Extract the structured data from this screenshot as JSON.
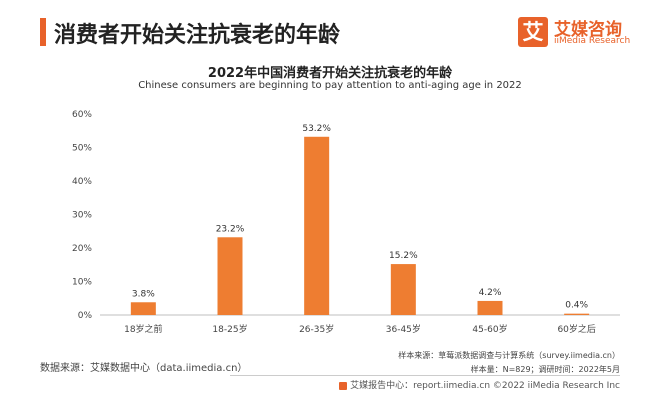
{
  "header": {
    "title": "消费者开始关注抗衰老的年龄",
    "logo_mark": "艾",
    "logo_cn": "艾媒咨询",
    "logo_en": "iiMedia Research"
  },
  "chart_data": {
    "type": "bar",
    "title": "2022年中国消费者开始关注抗衰老的年龄",
    "subtitle": "Chinese consumers are beginning to pay attention to anti-aging age in 2022",
    "categories": [
      "18岁之前",
      "18-25岁",
      "26-35岁",
      "36-45岁",
      "45-60岁",
      "60岁之后"
    ],
    "values": [
      3.8,
      23.2,
      53.2,
      15.2,
      4.2,
      0.4
    ],
    "value_labels": [
      "3.8%",
      "23.2%",
      "53.2%",
      "15.2%",
      "4.2%",
      "0.4%"
    ],
    "yticks": [
      "0%",
      "10%",
      "20%",
      "30%",
      "40%",
      "50%",
      "60%"
    ],
    "ylim": [
      0,
      60
    ],
    "unit": "%",
    "grid": false,
    "bar_color": "#ee7d31"
  },
  "footer": {
    "source_left": "数据来源：艾媒数据中心（data.iimedia.cn）",
    "source_right_1": "样本来源：草莓派数据调查与计算系统（survey.iimedia.cn）",
    "source_right_2": "样本量：N=829；调研时间：2022年5月",
    "copyright": "艾媒报告中心：report.iimedia.cn   ©2022  iiMedia Research  Inc"
  },
  "colors": {
    "accent": "#e8622a",
    "bar": "#ee7d31"
  }
}
